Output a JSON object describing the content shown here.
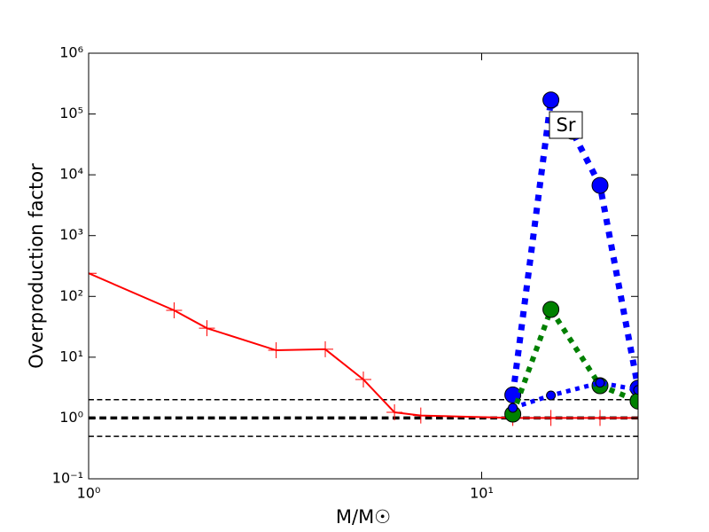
{
  "chart_data": {
    "type": "line",
    "x_label": "M/M☉",
    "y_label": "Overproduction factor",
    "annotation": "Sr",
    "xscale": "log",
    "yscale": "log",
    "xlim": [
      1,
      25
    ],
    "ylim": [
      0.1,
      1000000
    ],
    "xticks": [
      {
        "value": 1,
        "label": "10⁰"
      },
      {
        "value": 10,
        "label": "10¹"
      }
    ],
    "yticks": [
      {
        "value": 0.1,
        "label": "10⁻¹"
      },
      {
        "value": 1,
        "label": "10⁰"
      },
      {
        "value": 10,
        "label": "10¹"
      },
      {
        "value": 100,
        "label": "10²"
      },
      {
        "value": 1000,
        "label": "10³"
      },
      {
        "value": 10000,
        "label": "10⁴"
      },
      {
        "value": 100000,
        "label": "10⁵"
      },
      {
        "value": 1000000,
        "label": "10⁶"
      }
    ],
    "hlines": [
      {
        "value": 2,
        "color": "#000000",
        "linestyle": "dashed",
        "linewidth": 1.5
      },
      {
        "value": 1,
        "color": "#000000",
        "linestyle": "dashed",
        "linewidth": 3.5
      },
      {
        "value": 0.5,
        "color": "#000000",
        "linestyle": "dashed",
        "linewidth": 1.5
      }
    ],
    "series": [
      {
        "color": "#ff0000",
        "linestyle": "solid",
        "linewidth": 2,
        "marker": "plus",
        "markersize": 9,
        "x": [
          1,
          1.65,
          2,
          3,
          4,
          5,
          6,
          7,
          12,
          15,
          20,
          25
        ],
        "values": [
          240,
          59,
          30,
          13,
          13.5,
          4.3,
          1.24,
          1.1,
          1.0,
          1.0,
          1.0,
          1.0
        ]
      },
      {
        "color": "#0000ff",
        "linestyle": "dotted",
        "linewidth": 7,
        "marker": "circle",
        "markersize": 9,
        "x": [
          12,
          15,
          17,
          20,
          25
        ],
        "values": [
          2.4,
          170000,
          52000,
          6700,
          3.1
        ]
      },
      {
        "color": "#008000",
        "linestyle": "dotted",
        "linewidth": 6,
        "marker": "circle",
        "markersize": 9,
        "x": [
          12,
          15,
          20,
          25
        ],
        "values": [
          1.16,
          61,
          3.4,
          1.9
        ]
      },
      {
        "color": "#0000ff",
        "linestyle": "dotted",
        "linewidth": 5,
        "marker": "circle",
        "markersize": 5,
        "x": [
          12,
          15,
          20,
          25
        ],
        "values": [
          1.47,
          2.35,
          3.8,
          2.9
        ]
      }
    ]
  }
}
